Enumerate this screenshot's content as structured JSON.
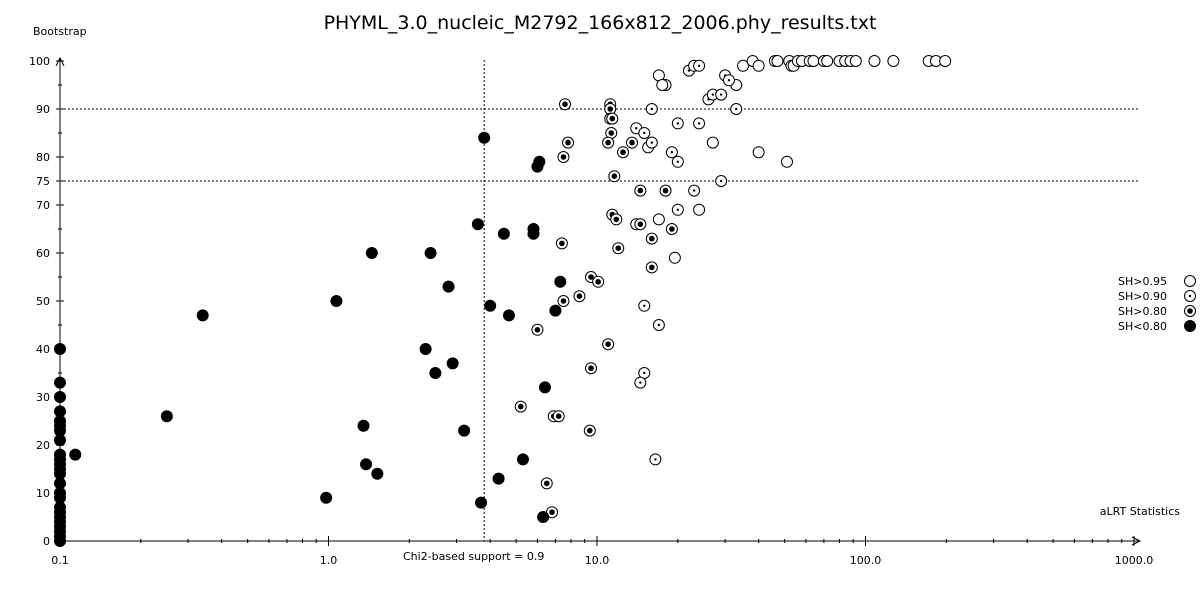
{
  "chart_data": {
    "type": "scatter",
    "title": "PHYML_3.0_nucleic_M2792_166x812_2006.phy_results.txt",
    "xlabel": "aLRT Statistics",
    "ylabel": "Bootstrap",
    "xscale": "log",
    "xlim": [
      0.1,
      1000.0
    ],
    "ylim": [
      0,
      100
    ],
    "x_ticks": [
      {
        "value": 0.1,
        "label": "0.1"
      },
      {
        "value": 1.0,
        "label": "1.0"
      },
      {
        "value": 10.0,
        "label": "10.0"
      },
      {
        "value": 100.0,
        "label": "100.0"
      },
      {
        "value": 1000.0,
        "label": "1000.0"
      }
    ],
    "y_ticks": [
      {
        "value": 0,
        "label": "0"
      },
      {
        "value": 10,
        "label": "10"
      },
      {
        "value": 20,
        "label": "20"
      },
      {
        "value": 30,
        "label": "30"
      },
      {
        "value": 40,
        "label": "40"
      },
      {
        "value": 50,
        "label": "50"
      },
      {
        "value": 60,
        "label": "60"
      },
      {
        "value": 70,
        "label": "70"
      },
      {
        "value": 75,
        "label": "75"
      },
      {
        "value": 80,
        "label": "80"
      },
      {
        "value": 90,
        "label": "90"
      },
      {
        "value": 100,
        "label": "100"
      }
    ],
    "reference_lines": {
      "vertical": {
        "x": 3.8,
        "label": "Chi2-based support = 0.9"
      },
      "horizontal": [
        90,
        75
      ]
    },
    "legend": {
      "placement": "right",
      "entries": [
        {
          "label": "SH>0.95",
          "series": "sh95"
        },
        {
          "label": "SH>0.90",
          "series": "sh90"
        },
        {
          "label": "SH>0.80",
          "series": "sh80"
        },
        {
          "label": "SH<0.80",
          "series": "shlow"
        }
      ]
    },
    "series": [
      {
        "name": "SH>0.95",
        "key": "sh95",
        "marker": "open-circle",
        "points": [
          [
            35,
            99
          ],
          [
            38,
            100
          ],
          [
            40,
            99
          ],
          [
            46,
            100
          ],
          [
            47,
            100
          ],
          [
            52,
            100
          ],
          [
            53,
            99
          ],
          [
            54,
            99
          ],
          [
            56,
            100
          ],
          [
            58,
            100
          ],
          [
            62,
            100
          ],
          [
            64,
            100
          ],
          [
            70,
            100
          ],
          [
            72,
            100
          ],
          [
            80,
            100
          ],
          [
            84,
            100
          ],
          [
            88,
            100
          ],
          [
            92,
            100
          ],
          [
            108,
            100
          ],
          [
            127,
            100
          ],
          [
            172,
            100
          ],
          [
            183,
            100
          ],
          [
            198,
            100
          ],
          [
            17,
            97
          ],
          [
            18,
            95
          ],
          [
            17.5,
            95
          ],
          [
            27,
            83
          ],
          [
            33,
            95
          ],
          [
            40,
            81
          ],
          [
            51,
            79
          ],
          [
            17,
            67
          ],
          [
            24,
            69
          ],
          [
            19.5,
            59
          ],
          [
            14,
            66
          ],
          [
            15.5,
            82
          ]
        ]
      },
      {
        "name": "SH>0.90",
        "key": "sh90",
        "marker": "dot-circle",
        "points": [
          [
            22,
            98
          ],
          [
            23,
            99
          ],
          [
            24,
            99
          ],
          [
            26,
            92
          ],
          [
            27,
            93
          ],
          [
            29,
            93
          ],
          [
            30,
            97
          ],
          [
            31,
            96
          ],
          [
            16,
            90
          ],
          [
            14,
            86
          ],
          [
            15,
            85
          ],
          [
            16,
            83
          ],
          [
            20,
            87
          ],
          [
            24,
            87
          ],
          [
            19,
            81
          ],
          [
            20,
            79
          ],
          [
            33,
            90
          ],
          [
            29,
            75
          ],
          [
            23,
            73
          ],
          [
            20,
            69
          ],
          [
            17,
            45
          ],
          [
            15,
            49
          ],
          [
            15,
            35
          ],
          [
            16.5,
            17
          ],
          [
            14.5,
            33
          ]
        ]
      },
      {
        "name": "SH>0.80",
        "key": "sh80",
        "marker": "ring-dot",
        "points": [
          [
            7.6,
            91
          ],
          [
            11.2,
            91
          ],
          [
            11.2,
            90
          ],
          [
            11.2,
            88
          ],
          [
            11.4,
            88
          ],
          [
            11.3,
            85
          ],
          [
            11,
            83
          ],
          [
            7.8,
            83
          ],
          [
            7.5,
            80
          ],
          [
            13.5,
            83
          ],
          [
            12.5,
            81
          ],
          [
            11.6,
            76
          ],
          [
            14.5,
            73
          ],
          [
            18,
            73
          ],
          [
            11.4,
            68
          ],
          [
            11.8,
            67
          ],
          [
            14.5,
            66
          ],
          [
            16,
            63
          ],
          [
            19,
            65
          ],
          [
            12,
            61
          ],
          [
            16,
            57
          ],
          [
            7.4,
            62
          ],
          [
            9.5,
            55
          ],
          [
            10.1,
            54
          ],
          [
            8.6,
            51
          ],
          [
            7.5,
            50
          ],
          [
            6,
            44
          ],
          [
            11,
            41
          ],
          [
            9.5,
            36
          ],
          [
            5.2,
            28
          ],
          [
            6.9,
            26
          ],
          [
            7.2,
            26
          ],
          [
            9.4,
            23
          ],
          [
            6.5,
            12
          ],
          [
            6.8,
            6
          ]
        ]
      },
      {
        "name": "SH<0.80",
        "key": "shlow",
        "marker": "filled-circle",
        "points": [
          [
            0.1,
            40
          ],
          [
            0.1,
            33
          ],
          [
            0.1,
            30
          ],
          [
            0.1,
            27
          ],
          [
            0.1,
            25
          ],
          [
            0.1,
            24
          ],
          [
            0.1,
            23
          ],
          [
            0.1,
            21
          ],
          [
            0.1,
            18
          ],
          [
            0.1,
            17
          ],
          [
            0.1,
            16
          ],
          [
            0.1,
            15
          ],
          [
            0.1,
            14
          ],
          [
            0.1,
            12
          ],
          [
            0.1,
            10
          ],
          [
            0.1,
            9
          ],
          [
            0.1,
            7
          ],
          [
            0.1,
            6
          ],
          [
            0.1,
            5
          ],
          [
            0.1,
            4
          ],
          [
            0.1,
            3
          ],
          [
            0.1,
            2
          ],
          [
            0.1,
            1
          ],
          [
            0.1,
            0
          ],
          [
            0.114,
            18
          ],
          [
            0.25,
            26
          ],
          [
            0.34,
            47
          ],
          [
            1.07,
            50
          ],
          [
            1.45,
            60
          ],
          [
            0.98,
            9
          ],
          [
            1.38,
            16
          ],
          [
            1.35,
            24
          ],
          [
            1.52,
            14
          ],
          [
            2.4,
            60
          ],
          [
            2.3,
            40
          ],
          [
            2.5,
            35
          ],
          [
            2.8,
            53
          ],
          [
            2.9,
            37
          ],
          [
            3.2,
            23
          ],
          [
            3.6,
            66
          ],
          [
            3.7,
            8
          ],
          [
            3.8,
            84
          ],
          [
            4.0,
            49
          ],
          [
            4.3,
            13
          ],
          [
            4.5,
            64
          ],
          [
            4.7,
            47
          ],
          [
            5.3,
            17
          ],
          [
            5.8,
            65
          ],
          [
            5.8,
            64
          ],
          [
            6.0,
            78
          ],
          [
            6.1,
            79
          ],
          [
            6.4,
            32
          ],
          [
            6.3,
            5
          ],
          [
            7.0,
            48
          ],
          [
            7.3,
            54
          ]
        ]
      }
    ]
  }
}
